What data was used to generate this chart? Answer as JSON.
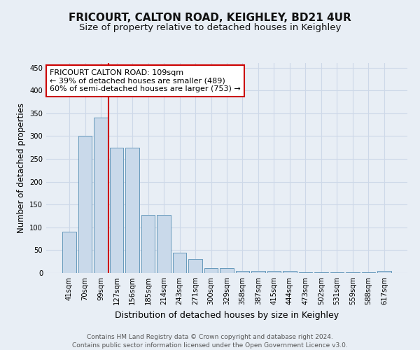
{
  "title": "FRICOURT, CALTON ROAD, KEIGHLEY, BD21 4UR",
  "subtitle": "Size of property relative to detached houses in Keighley",
  "xlabel": "Distribution of detached houses by size in Keighley",
  "ylabel": "Number of detached properties",
  "categories": [
    "41sqm",
    "70sqm",
    "99sqm",
    "127sqm",
    "156sqm",
    "185sqm",
    "214sqm",
    "243sqm",
    "271sqm",
    "300sqm",
    "329sqm",
    "358sqm",
    "387sqm",
    "415sqm",
    "444sqm",
    "473sqm",
    "502sqm",
    "531sqm",
    "559sqm",
    "588sqm",
    "617sqm"
  ],
  "values": [
    90,
    300,
    340,
    275,
    275,
    128,
    128,
    45,
    30,
    10,
    10,
    5,
    5,
    4,
    4,
    2,
    2,
    2,
    1,
    1,
    4
  ],
  "bar_color": "#c9d9ea",
  "bar_edgecolor": "#6699bb",
  "bar_linewidth": 0.7,
  "grid_color": "#cdd8e8",
  "background_color": "#e8eef5",
  "red_line_x": 2.5,
  "red_line_color": "#cc0000",
  "annotation_text": "FRICOURT CALTON ROAD: 109sqm\n← 39% of detached houses are smaller (489)\n60% of semi-detached houses are larger (753) →",
  "annotation_box_facecolor": "#ffffff",
  "annotation_box_edgecolor": "#cc0000",
  "ylim": [
    0,
    460
  ],
  "yticks": [
    0,
    50,
    100,
    150,
    200,
    250,
    300,
    350,
    400,
    450
  ],
  "footnote": "Contains HM Land Registry data © Crown copyright and database right 2024.\nContains public sector information licensed under the Open Government Licence v3.0.",
  "title_fontsize": 11,
  "subtitle_fontsize": 9.5,
  "annotation_fontsize": 8,
  "footnote_fontsize": 6.5,
  "xlabel_fontsize": 9,
  "ylabel_fontsize": 8.5,
  "tick_fontsize": 7.2
}
